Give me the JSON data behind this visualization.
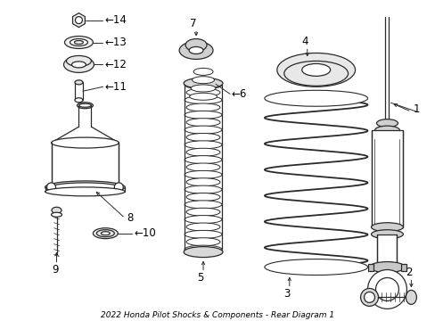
{
  "title": "2022 Honda Pilot Shocks & Components - Rear Diagram 1",
  "bg_color": "#ffffff",
  "line_color": "#2a2a2a",
  "fig_width": 4.89,
  "fig_height": 3.6,
  "dpi": 100
}
